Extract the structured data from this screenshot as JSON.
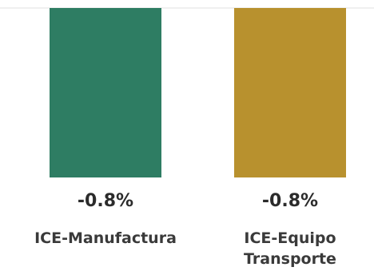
{
  "chart_data": {
    "type": "bar",
    "categories": [
      [
        "ICE-Manufactura"
      ],
      [
        "ICE-Equipo",
        "Transporte"
      ]
    ],
    "values": [
      -0.8,
      -0.8
    ],
    "value_labels": [
      "-0.8%",
      "-0.8%"
    ],
    "colors": [
      "#2e7d63",
      "#b8912e"
    ],
    "axis_color": "#e0e0e0",
    "ylim": [
      -0.8,
      0
    ]
  }
}
